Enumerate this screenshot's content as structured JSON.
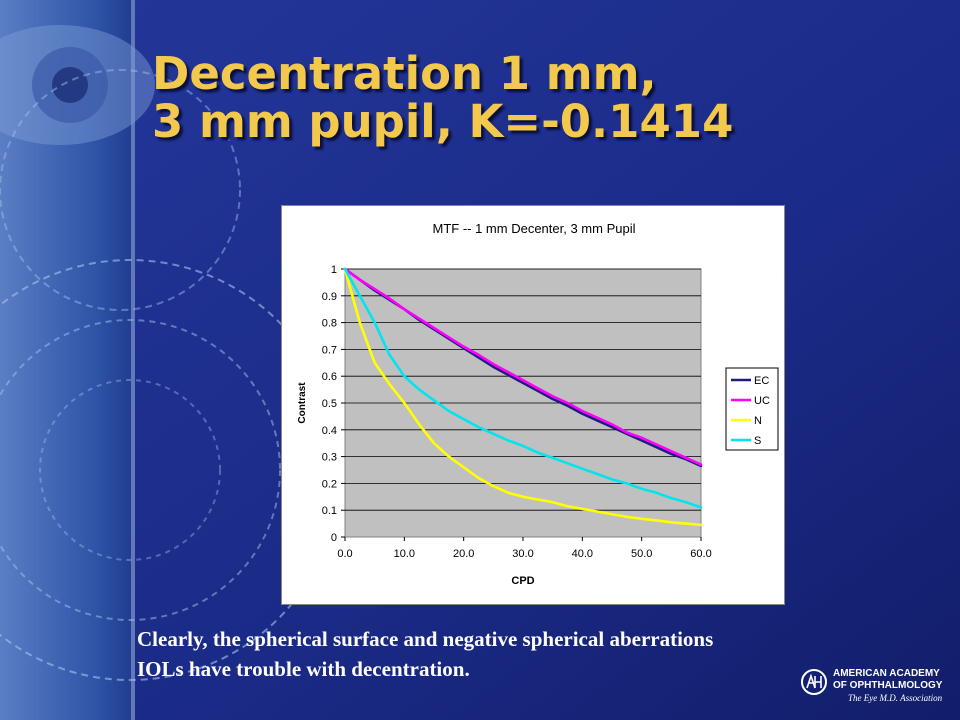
{
  "slide": {
    "title_lines": [
      "Decentration 1 mm,",
      "3 mm pupil, K=-0.1414"
    ],
    "caption_lines": [
      "Clearly, the spherical surface and negative spherical aberrations",
      "IOLs have trouble with decentration."
    ],
    "colors": {
      "background": "#1a2a86",
      "title": "#f2c94c",
      "caption": "#ffffff"
    }
  },
  "logo": {
    "line1": "AMERICAN ACADEMY",
    "line2": "OF OPHTHALMOLOGY",
    "tagline": "The Eye M.D. Association",
    "icon": "aao-monogram-icon"
  },
  "chart_data": {
    "type": "line",
    "title": "MTF -- 1 mm Decenter, 3 mm Pupil",
    "xlabel": "CPD",
    "ylabel": "Contrast",
    "xlim": [
      0,
      60
    ],
    "ylim": [
      0,
      1
    ],
    "x_ticks": [
      "0.0",
      "10.0",
      "20.0",
      "30.0",
      "40.0",
      "50.0",
      "60.0"
    ],
    "y_ticks": [
      "0",
      "0.1",
      "0.2",
      "0.3",
      "0.4",
      "0.5",
      "0.6",
      "0.7",
      "0.8",
      "0.9",
      "1"
    ],
    "grid": true,
    "plot_background": "#c0c0c0",
    "legend_position": "right",
    "x": [
      0,
      2.5,
      5,
      7.5,
      10,
      12.5,
      15,
      17.5,
      20,
      22.5,
      25,
      27.5,
      30,
      32.5,
      35,
      37.5,
      40,
      42.5,
      45,
      47.5,
      50,
      52.5,
      55,
      57.5,
      60
    ],
    "series": [
      {
        "name": "EC",
        "color": "#1c1c80",
        "values": [
          1.0,
          0.96,
          0.92,
          0.885,
          0.85,
          0.81,
          0.775,
          0.74,
          0.705,
          0.67,
          0.635,
          0.605,
          0.575,
          0.545,
          0.515,
          0.49,
          0.46,
          0.435,
          0.41,
          0.385,
          0.36,
          0.335,
          0.31,
          0.29,
          0.265
        ]
      },
      {
        "name": "UC",
        "color": "#ff00ff",
        "values": [
          1.0,
          0.96,
          0.925,
          0.89,
          0.85,
          0.815,
          0.78,
          0.745,
          0.71,
          0.68,
          0.645,
          0.615,
          0.585,
          0.555,
          0.525,
          0.5,
          0.47,
          0.445,
          0.42,
          0.39,
          0.37,
          0.345,
          0.32,
          0.295,
          0.27
        ]
      },
      {
        "name": "N",
        "color": "#ffff00",
        "values": [
          1.0,
          0.8,
          0.65,
          0.57,
          0.5,
          0.42,
          0.35,
          0.3,
          0.26,
          0.22,
          0.19,
          0.165,
          0.15,
          0.14,
          0.13,
          0.115,
          0.105,
          0.095,
          0.085,
          0.075,
          0.068,
          0.062,
          0.055,
          0.05,
          0.045
        ]
      },
      {
        "name": "S",
        "color": "#00e5ee",
        "values": [
          1.0,
          0.9,
          0.8,
          0.68,
          0.6,
          0.55,
          0.51,
          0.47,
          0.44,
          0.41,
          0.385,
          0.36,
          0.34,
          0.315,
          0.295,
          0.275,
          0.255,
          0.235,
          0.215,
          0.2,
          0.18,
          0.165,
          0.145,
          0.13,
          0.11
        ]
      }
    ]
  }
}
